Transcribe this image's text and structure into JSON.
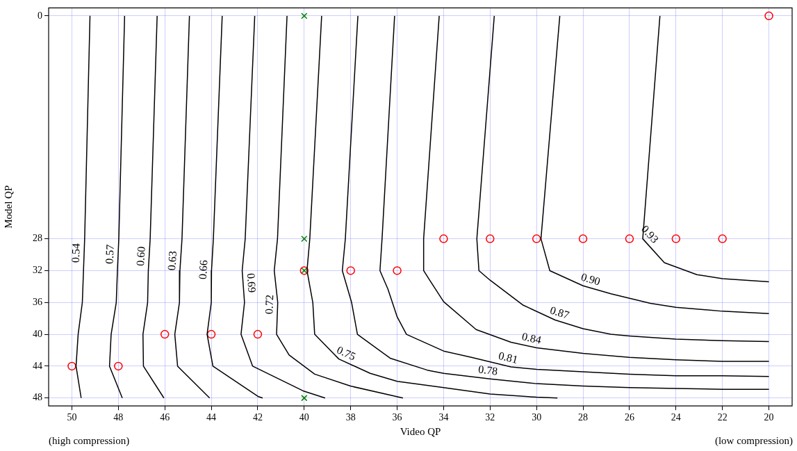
{
  "chart_data": {
    "type": "line",
    "xlabel": "Video QP",
    "ylabel": "Model QP",
    "xlim": [
      51,
      19
    ],
    "ylim": [
      49,
      -1
    ],
    "xticks": [
      50,
      48,
      46,
      44,
      42,
      40,
      38,
      36,
      34,
      32,
      30,
      28,
      26,
      24,
      22,
      20
    ],
    "yticks": [
      0,
      28,
      32,
      36,
      40,
      44,
      48
    ],
    "grid": true,
    "legend": false,
    "annotations": [
      "(high compression)",
      "(low compression)"
    ],
    "series": [
      {
        "name": "0.54",
        "color": "#000000",
        "x": [
          49.22,
          49.45,
          49.5,
          49.55,
          49.73,
          49.82,
          49.6
        ],
        "values": [
          0,
          28,
          32,
          36,
          40,
          44,
          48
        ]
      },
      {
        "name": "0.57",
        "color": "#000000",
        "x": [
          47.73,
          47.98,
          48.04,
          48.09,
          48.31,
          48.38,
          47.83
        ],
        "values": [
          0,
          28,
          32,
          36,
          40,
          44,
          48
        ]
      },
      {
        "name": "0.60",
        "color": "#000000",
        "x": [
          46.33,
          46.63,
          46.71,
          46.74,
          46.94,
          46.92,
          46.04
        ],
        "values": [
          0,
          28,
          32,
          36,
          40,
          44,
          48
        ]
      },
      {
        "name": "0.63",
        "color": "#000000",
        "x": [
          44.94,
          45.26,
          45.35,
          45.37,
          45.57,
          45.45,
          44.07
        ],
        "values": [
          0,
          28,
          32,
          36,
          40,
          44,
          48
        ]
      },
      {
        "name": "0.66",
        "color": "#000000",
        "x": [
          43.53,
          43.91,
          43.99,
          44.0,
          44.18,
          43.93,
          41.99,
          41.79
        ],
        "values": [
          0,
          28,
          32,
          36,
          40,
          44,
          47.8,
          48
        ]
      },
      {
        "name": "0.69",
        "color": "#000000",
        "x": [
          42.13,
          42.54,
          42.67,
          42.57,
          42.72,
          42.22,
          40.05,
          39.1
        ],
        "values": [
          0,
          28,
          32,
          36,
          40,
          44,
          47.1,
          48
        ]
      },
      {
        "name": "0.72",
        "color": "#000000",
        "x": [
          40.74,
          41.15,
          41.29,
          41.14,
          41.19,
          40.65,
          39.55,
          38.01,
          35.75
        ],
        "values": [
          0,
          28,
          32,
          36,
          40,
          42.6,
          45.0,
          46.5,
          48
        ]
      },
      {
        "name": "0.75",
        "color": "#000000",
        "x": [
          39.25,
          39.76,
          39.88,
          39.63,
          39.55,
          38.51,
          37.16,
          36.0,
          34.0,
          32.0,
          30.0,
          29.1
        ],
        "values": [
          0,
          28,
          32,
          36,
          40,
          43.1,
          44.9,
          45.9,
          46.7,
          47.5,
          47.9,
          48
        ]
      },
      {
        "name": "0.78",
        "color": "#000000",
        "x": [
          37.69,
          38.23,
          38.36,
          37.96,
          37.71,
          36.3,
          34.7,
          34.0,
          32.0,
          30.0,
          28.0,
          26.0,
          24.0,
          22.0,
          20.0
        ],
        "values": [
          0,
          28,
          32,
          36,
          40,
          43.0,
          44.5,
          44.9,
          45.6,
          46.2,
          46.5,
          46.7,
          46.8,
          46.9,
          46.9
        ]
      },
      {
        "name": "0.81",
        "color": "#000000",
        "x": [
          36.11,
          36.65,
          36.74,
          36.4,
          36.0,
          35.6,
          34.0,
          32.8,
          31.1,
          30.0,
          28.0,
          26.0,
          24.0,
          22.0,
          20.0
        ],
        "values": [
          0,
          28,
          32,
          34.3,
          37.8,
          40,
          42.1,
          42.9,
          44.1,
          44.4,
          44.7,
          45.0,
          45.2,
          45.2,
          45.3
        ]
      },
      {
        "name": "0.84",
        "color": "#000000",
        "x": [
          34.19,
          34.86,
          34.86,
          34.6,
          34.0,
          32.6,
          31.1,
          30.0,
          28.0,
          26.0,
          24.0,
          22.0,
          20.0
        ],
        "values": [
          0,
          28,
          32,
          33.2,
          35.9,
          39.4,
          41.0,
          41.7,
          42.4,
          42.9,
          43.2,
          43.4,
          43.4
        ]
      },
      {
        "name": "0.87",
        "color": "#000000",
        "x": [
          31.82,
          32.57,
          32.48,
          32.0,
          30.6,
          29.2,
          28.0,
          26.8,
          26.0,
          24.0,
          22.0,
          20.0
        ],
        "values": [
          0,
          28,
          32,
          33.2,
          36.3,
          38.2,
          39.3,
          40.0,
          40.2,
          40.6,
          40.8,
          40.9
        ]
      },
      {
        "name": "0.90",
        "color": "#000000",
        "x": [
          29.0,
          29.81,
          29.43,
          28.0,
          26.8,
          25.1,
          24.0,
          22.0,
          20.0
        ],
        "values": [
          0,
          28,
          32,
          33.9,
          34.9,
          36.1,
          36.6,
          37.1,
          37.4
        ]
      },
      {
        "name": "0.93",
        "color": "#000000",
        "x": [
          24.69,
          25.43,
          24.5,
          23.1,
          22.0,
          20.0
        ],
        "values": [
          0,
          28,
          31.0,
          32.5,
          33.0,
          33.4
        ]
      },
      {
        "type": "scatter",
        "color": "#ff0000",
        "marker": "circle",
        "x": [
          20,
          34,
          32,
          30,
          28,
          26,
          24,
          22,
          40,
          38,
          36,
          46,
          44,
          42,
          50,
          48
        ],
        "values": [
          0,
          28,
          28,
          28,
          28,
          28,
          28,
          28,
          32,
          32,
          32,
          40,
          40,
          40,
          44,
          44
        ]
      },
      {
        "type": "scatter",
        "color": "#008000",
        "marker": "cross",
        "x": [
          40,
          40,
          40,
          40
        ],
        "values": [
          0,
          28,
          32,
          48
        ]
      }
    ]
  }
}
